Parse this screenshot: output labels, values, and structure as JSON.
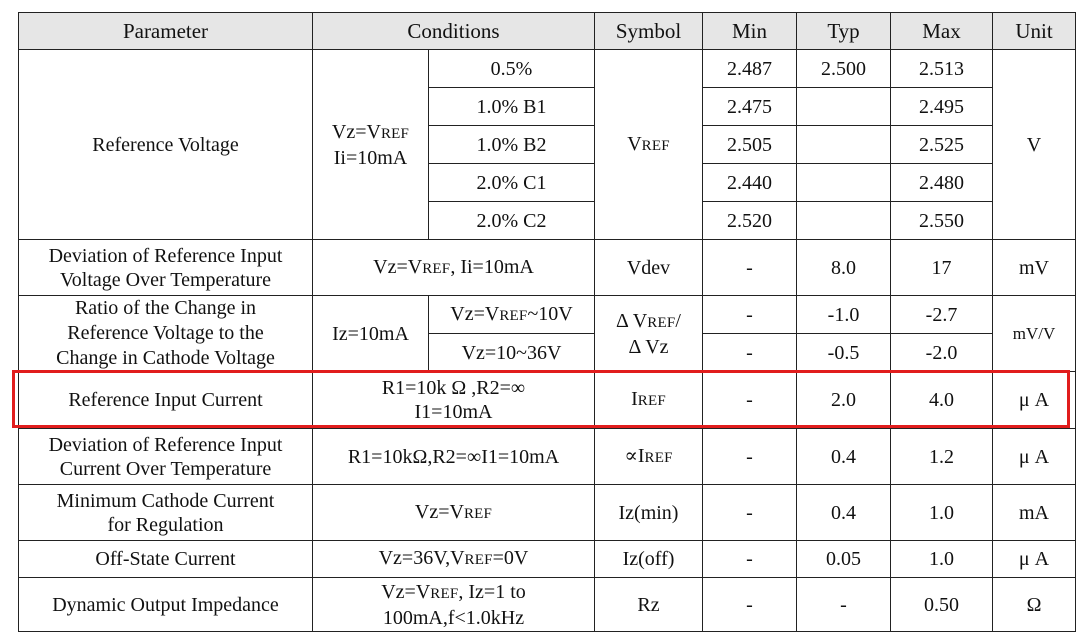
{
  "headers": {
    "parameter": "Parameter",
    "conditions": "Conditions",
    "symbol": "Symbol",
    "min": "Min",
    "typ": "Typ",
    "max": "Max",
    "unit": "Unit"
  },
  "ref_voltage": {
    "parameter": "Reference Voltage",
    "cond_vz": "Vz=V",
    "cond_vz_sub": "REF",
    "cond_ii": "Ii=10mA",
    "symbol_main": "V",
    "symbol_sub": "REF",
    "unit": "V",
    "rows": [
      {
        "grade": "0.5%",
        "min": "2.487",
        "typ": "2.500",
        "max": "2.513"
      },
      {
        "grade": "1.0% B1",
        "min": "2.475",
        "typ": "",
        "max": "2.495"
      },
      {
        "grade": "1.0% B2",
        "min": "2.505",
        "typ": "",
        "max": "2.525"
      },
      {
        "grade": "2.0% C1",
        "min": "2.440",
        "typ": "",
        "max": "2.480"
      },
      {
        "grade": "2.0% C2",
        "min": "2.520",
        "typ": "",
        "max": "2.550"
      }
    ]
  },
  "deviation_voltage": {
    "parameter_line1": "Deviation of Reference Input",
    "parameter_line2": "Voltage Over Temperature",
    "cond_a": "Vz=V",
    "cond_sub": "REF",
    "cond_b": ", Ii=10mA",
    "symbol": "Vdev",
    "min": "-",
    "typ": "8.0",
    "max": "17",
    "unit": "mV"
  },
  "ratio": {
    "parameter_line1": "Ratio of the Change in",
    "parameter_line2": "Reference Voltage to the",
    "parameter_line3": "Change in Cathode Voltage",
    "cond_iz": "Iz=10mA",
    "symbol_line1_a": "Δ V",
    "symbol_line1_sub": "REF",
    "symbol_line1_b": "/",
    "symbol_line2": "Δ Vz",
    "unit": "mV/V",
    "rows": [
      {
        "cond_a": "Vz=V",
        "cond_sub": "REF",
        "cond_b": "~10V",
        "min": "-",
        "typ": "-1.0",
        "max": "-2.7"
      },
      {
        "cond_a": "Vz=10~36V",
        "cond_sub": "",
        "cond_b": "",
        "min": "-",
        "typ": "-0.5",
        "max": "-2.0"
      }
    ]
  },
  "ref_current": {
    "parameter": "Reference Input Current",
    "cond_line1": "R1=10k Ω ,R2=∞",
    "cond_line2": "I1=10mA",
    "symbol_main": "I",
    "symbol_sub": "REF",
    "min": "-",
    "typ": "2.0",
    "max": "4.0",
    "unit": "μ A"
  },
  "deviation_current": {
    "parameter_line1": "Deviation of Reference Input",
    "parameter_line2": "Current Over Temperature",
    "cond": "R1=10kΩ,R2=∞I1=10mA",
    "symbol_pre": "∝I",
    "symbol_sub": "REF",
    "min": "-",
    "typ": "0.4",
    "max": "1.2",
    "unit": "μ A"
  },
  "min_cathode": {
    "parameter_line1": "Minimum Cathode Current",
    "parameter_line2": "for Regulation",
    "cond_a": "Vz=V",
    "cond_sub": "REF",
    "symbol": "Iz(min)",
    "min": "-",
    "typ": "0.4",
    "max": "1.0",
    "unit": "mA"
  },
  "off_state": {
    "parameter": "Off-State Current",
    "cond_a": "Vz=36V,V",
    "cond_sub": "REF",
    "cond_b": "=0V",
    "symbol": "Iz(off)",
    "min": "-",
    "typ": "0.05",
    "max": "1.0",
    "unit": "μ A"
  },
  "dynamic": {
    "parameter": "Dynamic Output Impedance",
    "cond_line1_a": "Vz=V",
    "cond_line1_sub": "REF",
    "cond_line1_b": ", Iz=1 to",
    "cond_line2": "100mA,f<1.0kHz",
    "symbol": "Rz",
    "min": "-",
    "typ": "-",
    "max": "0.50",
    "unit": "Ω"
  },
  "highlight_color": "#e11d1d"
}
